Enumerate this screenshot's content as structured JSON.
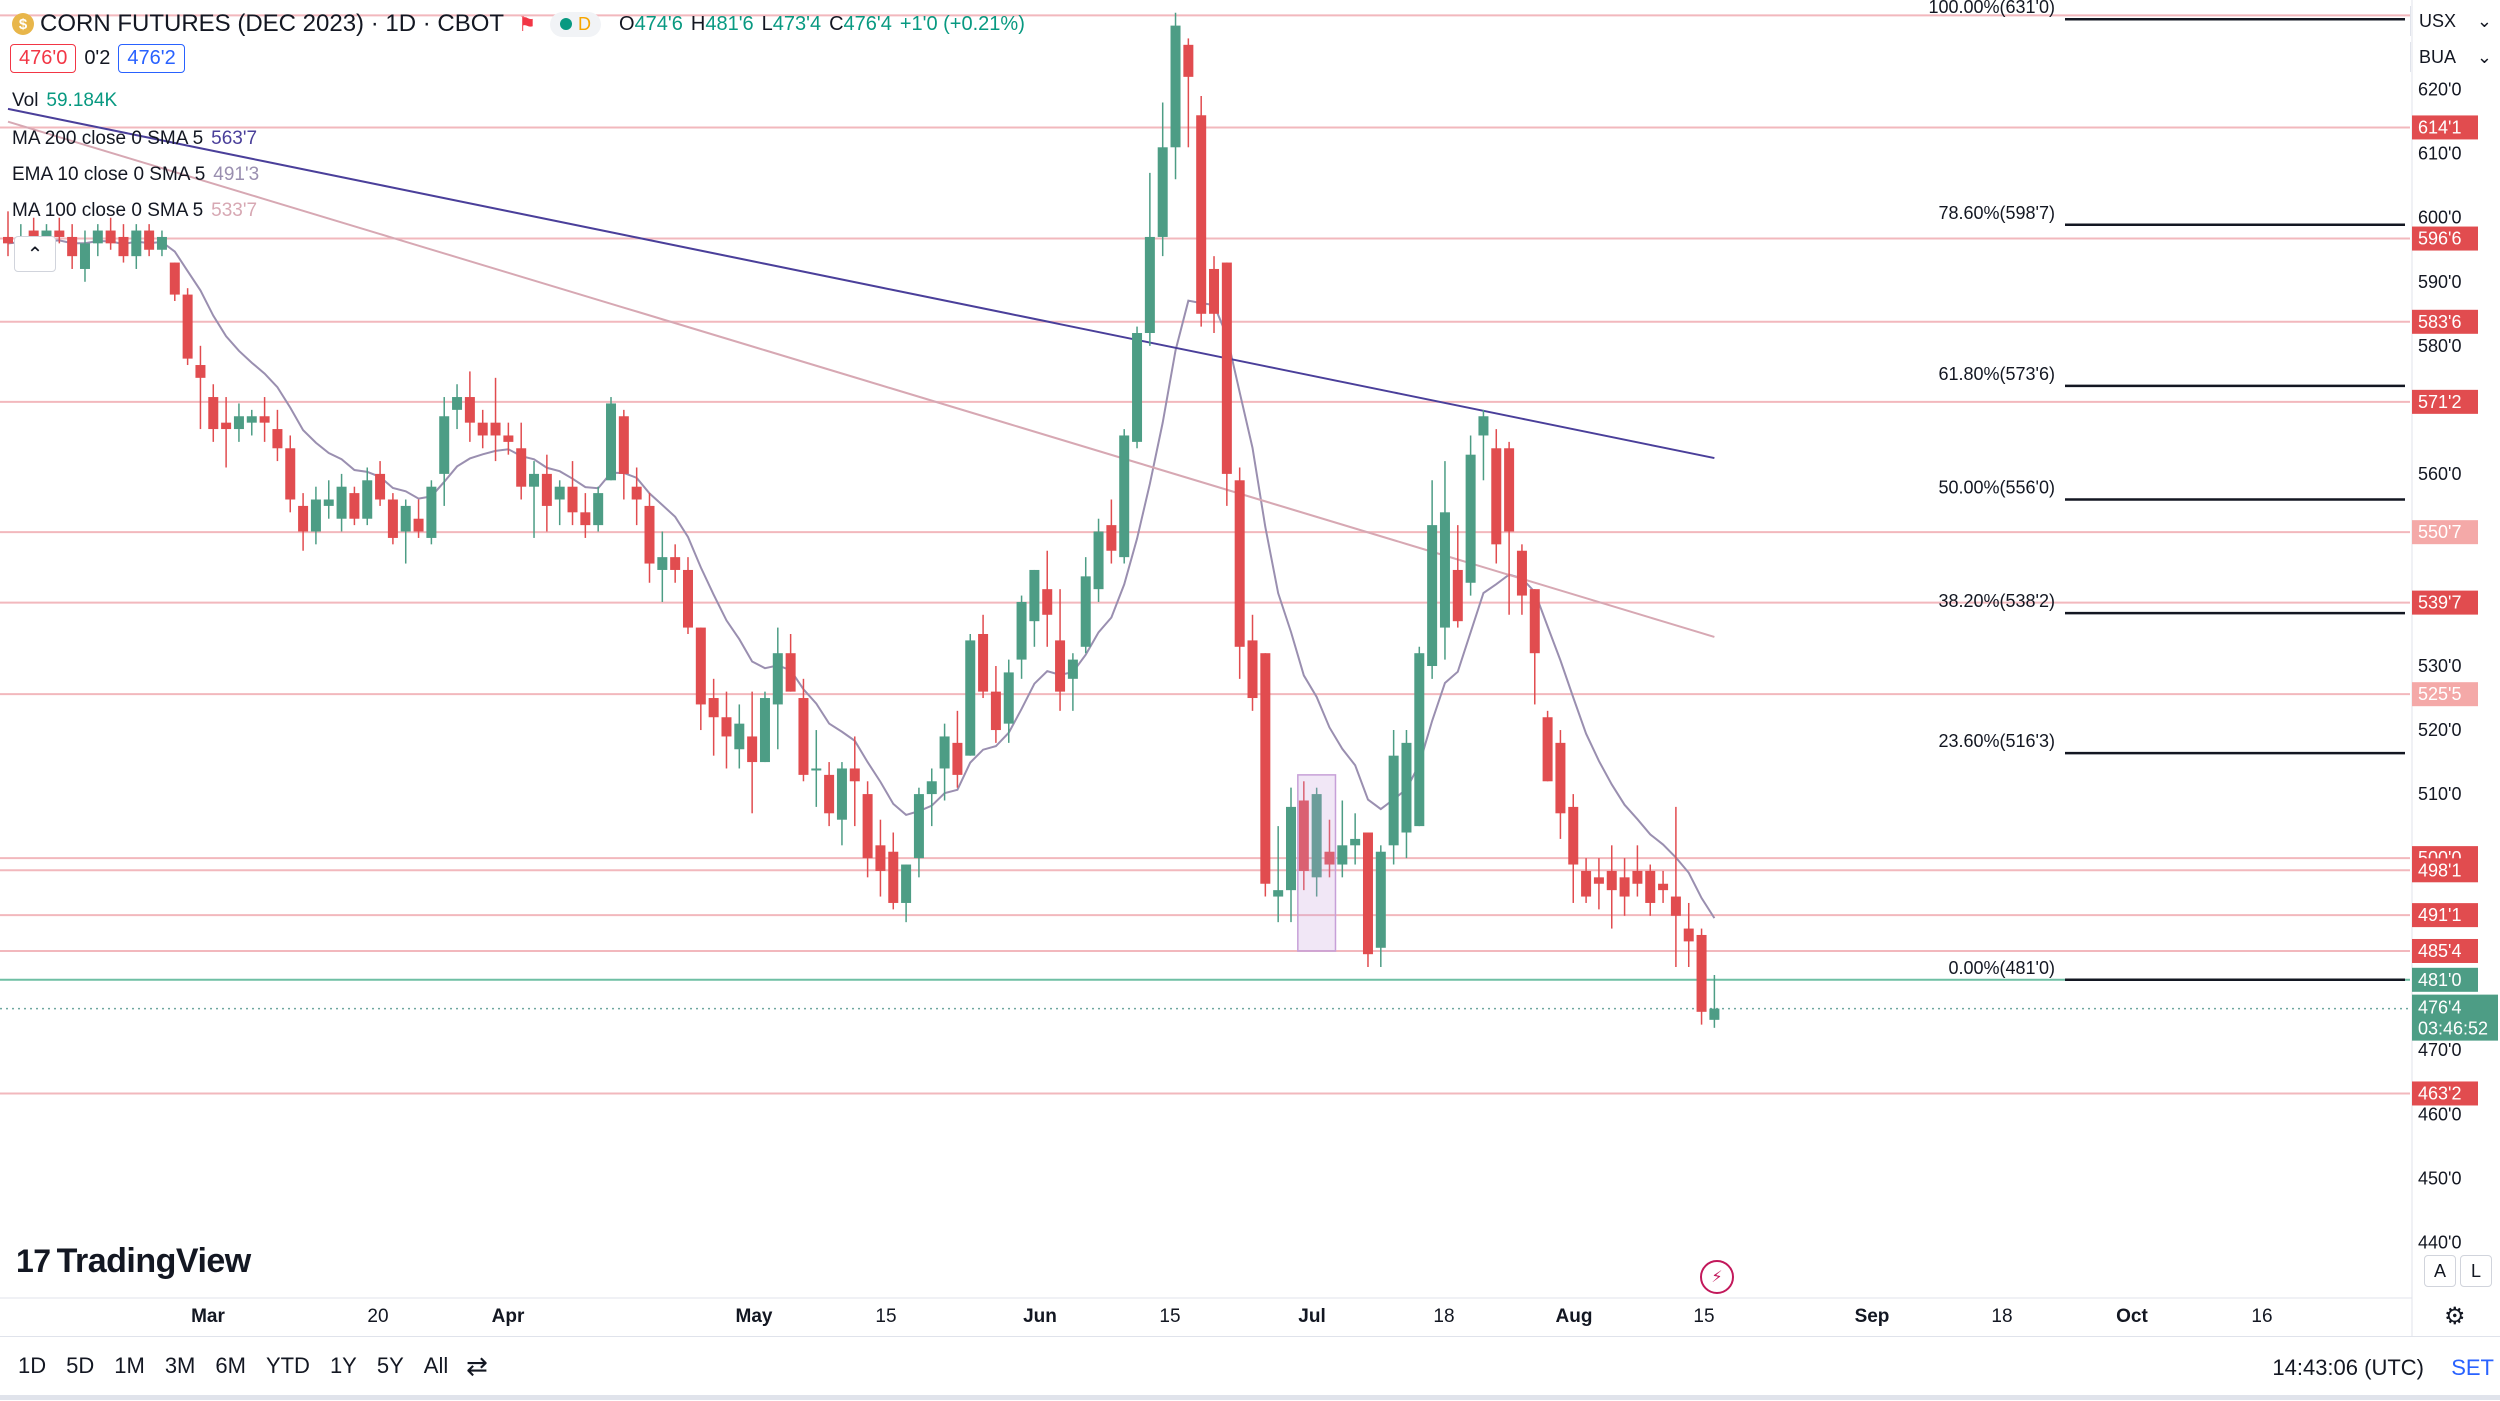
{
  "header": {
    "coin_letter": "$",
    "symbol": "CORN FUTURES (DEC 2023) · 1D · CBOT",
    "market_status": "D",
    "ohlc": [
      {
        "k": "O",
        "v": "474'6"
      },
      {
        "k": "H",
        "v": "481'6"
      },
      {
        "k": "L",
        "v": "473'4"
      },
      {
        "k": "C",
        "v": "476'4"
      },
      {
        "k": "",
        "v": "+1'0 (+0.21%)"
      }
    ],
    "sell_price": "476'0",
    "spread": "0'2",
    "buy_price": "476'2"
  },
  "indicators": [
    {
      "label": "Vol",
      "value": "59.184K",
      "color": "#089981"
    },
    {
      "label": "MA 200 close 0 SMA 5",
      "value": "563'7",
      "color": "#4a3f9a"
    },
    {
      "label": "EMA 10 close 0 SMA 5",
      "value": "491'3",
      "color": "#9a8fb0"
    },
    {
      "label": "MA 100 close 0 SMA 5",
      "value": "533'7",
      "color": "#d7a8b3"
    }
  ],
  "top_right": {
    "currency": "USX",
    "account": "BUA"
  },
  "chart_data": {
    "type": "candlestick",
    "y_range": [
      431,
      634
    ],
    "price_ticks": [
      {
        "v": 620,
        "t": "620'0"
      },
      {
        "v": 610,
        "t": "610'0"
      },
      {
        "v": 600,
        "t": "600'0"
      },
      {
        "v": 590,
        "t": "590'0"
      },
      {
        "v": 580,
        "t": "580'0"
      },
      {
        "v": 560,
        "t": "560'0"
      },
      {
        "v": 530,
        "t": "530'0"
      },
      {
        "v": 520,
        "t": "520'0"
      },
      {
        "v": 510,
        "t": "510'0"
      },
      {
        "v": 470,
        "t": "470'0"
      },
      {
        "v": 460,
        "t": "460'0"
      },
      {
        "v": 450,
        "t": "450'0"
      },
      {
        "v": 440,
        "t": "440'0"
      }
    ],
    "level_labels": [
      {
        "v": 614.1,
        "t": "614'1",
        "kind": "red"
      },
      {
        "v": 596.75,
        "t": "596'6",
        "kind": "red"
      },
      {
        "v": 583.75,
        "t": "583'6",
        "kind": "red"
      },
      {
        "v": 571.25,
        "t": "571'2",
        "kind": "red"
      },
      {
        "v": 550.9,
        "t": "550'7",
        "kind": "pink"
      },
      {
        "v": 539.9,
        "t": "539'7",
        "kind": "red"
      },
      {
        "v": 525.6,
        "t": "525'5",
        "kind": "pink"
      },
      {
        "v": 500,
        "t": "500'0",
        "kind": "red"
      },
      {
        "v": 498.1,
        "t": "498'1",
        "kind": "red"
      },
      {
        "v": 491.1,
        "t": "491'1",
        "kind": "red"
      },
      {
        "v": 485.5,
        "t": "485'4",
        "kind": "red"
      },
      {
        "v": 481,
        "t": "481'0",
        "kind": "green"
      },
      {
        "v": 463.25,
        "t": "463'2",
        "kind": "red"
      }
    ],
    "current_price": {
      "v": 476.5,
      "t": "476'4",
      "countdown": "03:46:52"
    },
    "horizontal_lines": [
      631.6,
      614.1,
      596.75,
      583.75,
      571.25,
      550.9,
      539.9,
      525.6,
      500,
      498.1,
      491.1,
      485.5,
      463.25
    ],
    "fib_levels": [
      {
        "label": "100.00%(631'0)",
        "v": 631
      },
      {
        "label": "78.60%(598'7)",
        "v": 598.9
      },
      {
        "label": "61.80%(573'6)",
        "v": 573.75
      },
      {
        "label": "50.00%(556'0)",
        "v": 556
      },
      {
        "label": "38.20%(538'2)",
        "v": 538.25
      },
      {
        "label": "23.60%(516'3)",
        "v": 516.4
      },
      {
        "label": "0.00%(481'0)",
        "v": 481
      }
    ],
    "x_ticks": [
      "Mar",
      "20",
      "Apr",
      "May",
      "15",
      "Jun",
      "15",
      "Jul",
      "18",
      "Aug",
      "15",
      "Sep",
      "18",
      "Oct",
      "16"
    ],
    "candles": [
      {
        "o": 597,
        "h": 601,
        "l": 594,
        "c": 596
      },
      {
        "o": 596,
        "h": 599,
        "l": 593,
        "c": 597
      },
      {
        "o": 598,
        "h": 600,
        "l": 594,
        "c": 595
      },
      {
        "o": 594,
        "h": 599,
        "l": 593,
        "c": 598
      },
      {
        "o": 598,
        "h": 600,
        "l": 596,
        "c": 597
      },
      {
        "o": 597,
        "h": 599,
        "l": 592,
        "c": 594
      },
      {
        "o": 592,
        "h": 598,
        "l": 590,
        "c": 596
      },
      {
        "o": 596,
        "h": 599,
        "l": 594,
        "c": 598
      },
      {
        "o": 598,
        "h": 600,
        "l": 595,
        "c": 596
      },
      {
        "o": 597,
        "h": 599,
        "l": 593,
        "c": 594
      },
      {
        "o": 594,
        "h": 599,
        "l": 592,
        "c": 598
      },
      {
        "o": 598,
        "h": 599,
        "l": 594,
        "c": 595
      },
      {
        "o": 595,
        "h": 598,
        "l": 594,
        "c": 597
      },
      {
        "o": 593,
        "h": 593,
        "l": 587,
        "c": 588
      },
      {
        "o": 588,
        "h": 589,
        "l": 577,
        "c": 578
      },
      {
        "o": 577,
        "h": 580,
        "l": 567,
        "c": 575
      },
      {
        "o": 572,
        "h": 574,
        "l": 565,
        "c": 567
      },
      {
        "o": 568,
        "h": 572,
        "l": 561,
        "c": 567
      },
      {
        "o": 567,
        "h": 571,
        "l": 565,
        "c": 569
      },
      {
        "o": 568,
        "h": 570,
        "l": 566,
        "c": 569
      },
      {
        "o": 569,
        "h": 572,
        "l": 565,
        "c": 568
      },
      {
        "o": 567,
        "h": 570,
        "l": 562,
        "c": 564
      },
      {
        "o": 564,
        "h": 566,
        "l": 554,
        "c": 556
      },
      {
        "o": 555,
        "h": 557,
        "l": 548,
        "c": 551
      },
      {
        "o": 551,
        "h": 558,
        "l": 549,
        "c": 556
      },
      {
        "o": 555,
        "h": 559,
        "l": 553,
        "c": 556
      },
      {
        "o": 553,
        "h": 560,
        "l": 551,
        "c": 558
      },
      {
        "o": 557,
        "h": 558,
        "l": 552,
        "c": 553
      },
      {
        "o": 553,
        "h": 561,
        "l": 552,
        "c": 559
      },
      {
        "o": 560,
        "h": 562,
        "l": 555,
        "c": 556
      },
      {
        "o": 556,
        "h": 557,
        "l": 549,
        "c": 550
      },
      {
        "o": 551,
        "h": 556,
        "l": 546,
        "c": 555
      },
      {
        "o": 553,
        "h": 556,
        "l": 550,
        "c": 551
      },
      {
        "o": 550,
        "h": 559,
        "l": 549,
        "c": 558
      },
      {
        "o": 560,
        "h": 572,
        "l": 555,
        "c": 569
      },
      {
        "o": 570,
        "h": 574,
        "l": 567,
        "c": 572
      },
      {
        "o": 572,
        "h": 576,
        "l": 565,
        "c": 568
      },
      {
        "o": 568,
        "h": 570,
        "l": 564,
        "c": 566
      },
      {
        "o": 568,
        "h": 575,
        "l": 562,
        "c": 566
      },
      {
        "o": 566,
        "h": 568,
        "l": 563,
        "c": 565
      },
      {
        "o": 564,
        "h": 568,
        "l": 556,
        "c": 558
      },
      {
        "o": 558,
        "h": 562,
        "l": 550,
        "c": 560
      },
      {
        "o": 560,
        "h": 563,
        "l": 551,
        "c": 555
      },
      {
        "o": 556,
        "h": 559,
        "l": 552,
        "c": 558
      },
      {
        "o": 558,
        "h": 562,
        "l": 552,
        "c": 554
      },
      {
        "o": 554,
        "h": 557,
        "l": 550,
        "c": 552
      },
      {
        "o": 552,
        "h": 558,
        "l": 551,
        "c": 557
      },
      {
        "o": 559,
        "h": 572,
        "l": 559,
        "c": 571
      },
      {
        "o": 569,
        "h": 570,
        "l": 556,
        "c": 560
      },
      {
        "o": 558,
        "h": 561,
        "l": 552,
        "c": 556
      },
      {
        "o": 555,
        "h": 557,
        "l": 543,
        "c": 546
      },
      {
        "o": 545,
        "h": 551,
        "l": 540,
        "c": 547
      },
      {
        "o": 547,
        "h": 549,
        "l": 543,
        "c": 545
      },
      {
        "o": 545,
        "h": 547,
        "l": 535,
        "c": 536
      },
      {
        "o": 536,
        "h": 536,
        "l": 520,
        "c": 524
      },
      {
        "o": 525,
        "h": 528,
        "l": 516,
        "c": 522
      },
      {
        "o": 522,
        "h": 526,
        "l": 514,
        "c": 519
      },
      {
        "o": 517,
        "h": 524,
        "l": 514,
        "c": 521
      },
      {
        "o": 519,
        "h": 526,
        "l": 507,
        "c": 515
      },
      {
        "o": 515,
        "h": 526,
        "l": 515,
        "c": 525
      },
      {
        "o": 524,
        "h": 536,
        "l": 517,
        "c": 532
      },
      {
        "o": 532,
        "h": 535,
        "l": 526,
        "c": 526
      },
      {
        "o": 525,
        "h": 528,
        "l": 512,
        "c": 513
      },
      {
        "o": 514,
        "h": 520,
        "l": 508,
        "c": 514
      },
      {
        "o": 513,
        "h": 515,
        "l": 505,
        "c": 507
      },
      {
        "o": 506,
        "h": 515,
        "l": 502,
        "c": 514
      },
      {
        "o": 514,
        "h": 519,
        "l": 505,
        "c": 512
      },
      {
        "o": 510,
        "h": 512,
        "l": 497,
        "c": 500
      },
      {
        "o": 502,
        "h": 506,
        "l": 494,
        "c": 498
      },
      {
        "o": 501,
        "h": 504,
        "l": 492,
        "c": 493
      },
      {
        "o": 493,
        "h": 499,
        "l": 490,
        "c": 499
      },
      {
        "o": 500,
        "h": 511,
        "l": 497,
        "c": 510
      },
      {
        "o": 510,
        "h": 514,
        "l": 505,
        "c": 512
      },
      {
        "o": 514,
        "h": 521,
        "l": 509,
        "c": 519
      },
      {
        "o": 518,
        "h": 523,
        "l": 511,
        "c": 513
      },
      {
        "o": 516,
        "h": 535,
        "l": 516,
        "c": 534
      },
      {
        "o": 535,
        "h": 538,
        "l": 525,
        "c": 526
      },
      {
        "o": 526,
        "h": 530,
        "l": 518,
        "c": 520
      },
      {
        "o": 521,
        "h": 531,
        "l": 518,
        "c": 529
      },
      {
        "o": 531,
        "h": 541,
        "l": 528,
        "c": 540
      },
      {
        "o": 537,
        "h": 545,
        "l": 533,
        "c": 545
      },
      {
        "o": 542,
        "h": 548,
        "l": 533,
        "c": 538
      },
      {
        "o": 534,
        "h": 542,
        "l": 523,
        "c": 526
      },
      {
        "o": 528,
        "h": 532,
        "l": 523,
        "c": 531
      },
      {
        "o": 533,
        "h": 547,
        "l": 532,
        "c": 544
      },
      {
        "o": 542,
        "h": 553,
        "l": 540,
        "c": 551
      },
      {
        "o": 552,
        "h": 556,
        "l": 546,
        "c": 548
      },
      {
        "o": 547,
        "h": 567,
        "l": 546,
        "c": 566
      },
      {
        "o": 565,
        "h": 583,
        "l": 564,
        "c": 582
      },
      {
        "o": 582,
        "h": 607,
        "l": 580,
        "c": 597
      },
      {
        "o": 597,
        "h": 618,
        "l": 594,
        "c": 611
      },
      {
        "o": 611,
        "h": 632,
        "l": 606,
        "c": 630
      },
      {
        "o": 627,
        "h": 628,
        "l": 611,
        "c": 622
      },
      {
        "o": 616,
        "h": 619,
        "l": 583,
        "c": 585
      },
      {
        "o": 592,
        "h": 594,
        "l": 582,
        "c": 585
      },
      {
        "o": 593,
        "h": 593,
        "l": 555,
        "c": 560
      },
      {
        "o": 559,
        "h": 561,
        "l": 528,
        "c": 533
      },
      {
        "o": 534,
        "h": 538,
        "l": 523,
        "c": 525
      },
      {
        "o": 532,
        "h": 532,
        "l": 494,
        "c": 496
      },
      {
        "o": 494,
        "h": 505,
        "l": 490,
        "c": 495
      },
      {
        "o": 495,
        "h": 511,
        "l": 490,
        "c": 508
      },
      {
        "o": 509,
        "h": 512,
        "l": 495,
        "c": 498
      },
      {
        "o": 497,
        "h": 511,
        "l": 494,
        "c": 510
      },
      {
        "o": 501,
        "h": 506,
        "l": 497,
        "c": 499
      },
      {
        "o": 499,
        "h": 509,
        "l": 497,
        "c": 502
      },
      {
        "o": 502,
        "h": 507,
        "l": 499,
        "c": 503
      },
      {
        "o": 504,
        "h": 504,
        "l": 483,
        "c": 485
      },
      {
        "o": 486,
        "h": 502,
        "l": 483,
        "c": 501
      },
      {
        "o": 502,
        "h": 520,
        "l": 499,
        "c": 516
      },
      {
        "o": 504,
        "h": 520,
        "l": 500,
        "c": 518
      },
      {
        "o": 505,
        "h": 533,
        "l": 505,
        "c": 532
      },
      {
        "o": 530,
        "h": 559,
        "l": 528,
        "c": 552
      },
      {
        "o": 536,
        "h": 562,
        "l": 531,
        "c": 554
      },
      {
        "o": 545,
        "h": 552,
        "l": 536,
        "c": 537
      },
      {
        "o": 543,
        "h": 566,
        "l": 541,
        "c": 563
      },
      {
        "o": 566,
        "h": 570,
        "l": 559,
        "c": 569
      },
      {
        "o": 564,
        "h": 567,
        "l": 546,
        "c": 549
      },
      {
        "o": 564,
        "h": 565,
        "l": 538,
        "c": 551
      },
      {
        "o": 548,
        "h": 549,
        "l": 538,
        "c": 541
      },
      {
        "o": 542,
        "h": 542,
        "l": 524,
        "c": 532
      },
      {
        "o": 522,
        "h": 523,
        "l": 512,
        "c": 512
      },
      {
        "o": 518,
        "h": 520,
        "l": 503,
        "c": 507
      },
      {
        "o": 508,
        "h": 510,
        "l": 493,
        "c": 499
      },
      {
        "o": 498,
        "h": 500,
        "l": 493,
        "c": 494
      },
      {
        "o": 497,
        "h": 500,
        "l": 492,
        "c": 496
      },
      {
        "o": 498,
        "h": 502,
        "l": 489,
        "c": 495
      },
      {
        "o": 497,
        "h": 500,
        "l": 491,
        "c": 494
      },
      {
        "o": 498,
        "h": 502,
        "l": 494,
        "c": 496
      },
      {
        "o": 498,
        "h": 499,
        "l": 491,
        "c": 493
      },
      {
        "o": 496,
        "h": 498,
        "l": 493,
        "c": 495
      },
      {
        "o": 494,
        "h": 508,
        "l": 483,
        "c": 491
      },
      {
        "o": 489,
        "h": 493,
        "l": 483,
        "c": 487
      },
      {
        "o": 488,
        "h": 489,
        "l": 474,
        "c": 476
      },
      {
        "o": 474.75,
        "h": 481.75,
        "l": 473.5,
        "c": 476.5
      }
    ],
    "volume_max": 95,
    "volumes": [
      0,
      0,
      0,
      0,
      0,
      0,
      0,
      0,
      0,
      0,
      0,
      0,
      0,
      0,
      0,
      0,
      0,
      0,
      0,
      0,
      0,
      0,
      0,
      0,
      0,
      0,
      0,
      0,
      0,
      0,
      0,
      0,
      0,
      0,
      0,
      0,
      0,
      0,
      0,
      0,
      0,
      0,
      0,
      0,
      0,
      0,
      0,
      0,
      0,
      0,
      0,
      0,
      0,
      0,
      0,
      0,
      0,
      0,
      0,
      0,
      0,
      0,
      0,
      0,
      0,
      0,
      0,
      0,
      0,
      0,
      0,
      0,
      0,
      0,
      0,
      0,
      0,
      0,
      0,
      0,
      0,
      0,
      0,
      0,
      0,
      0,
      0,
      0,
      0,
      0,
      0,
      0,
      0,
      0,
      0,
      0,
      0,
      0,
      0,
      0,
      0,
      0,
      0,
      0,
      0,
      0,
      0,
      0,
      0,
      0,
      0,
      0,
      0,
      0,
      0,
      0,
      0,
      0,
      0,
      0,
      0,
      0,
      0,
      0,
      0,
      0,
      0,
      0,
      0,
      0,
      0,
      0
    ]
  },
  "logo_text": "TradingView",
  "logo_mark": "17",
  "scale_buttons": {
    "auto": "A",
    "log": "L"
  },
  "bottom_bar": {
    "ranges": [
      "1D",
      "5D",
      "1M",
      "3M",
      "6M",
      "YTD",
      "1Y",
      "5Y",
      "All"
    ],
    "time": "14:43:06 (UTC)",
    "set": "SET"
  }
}
